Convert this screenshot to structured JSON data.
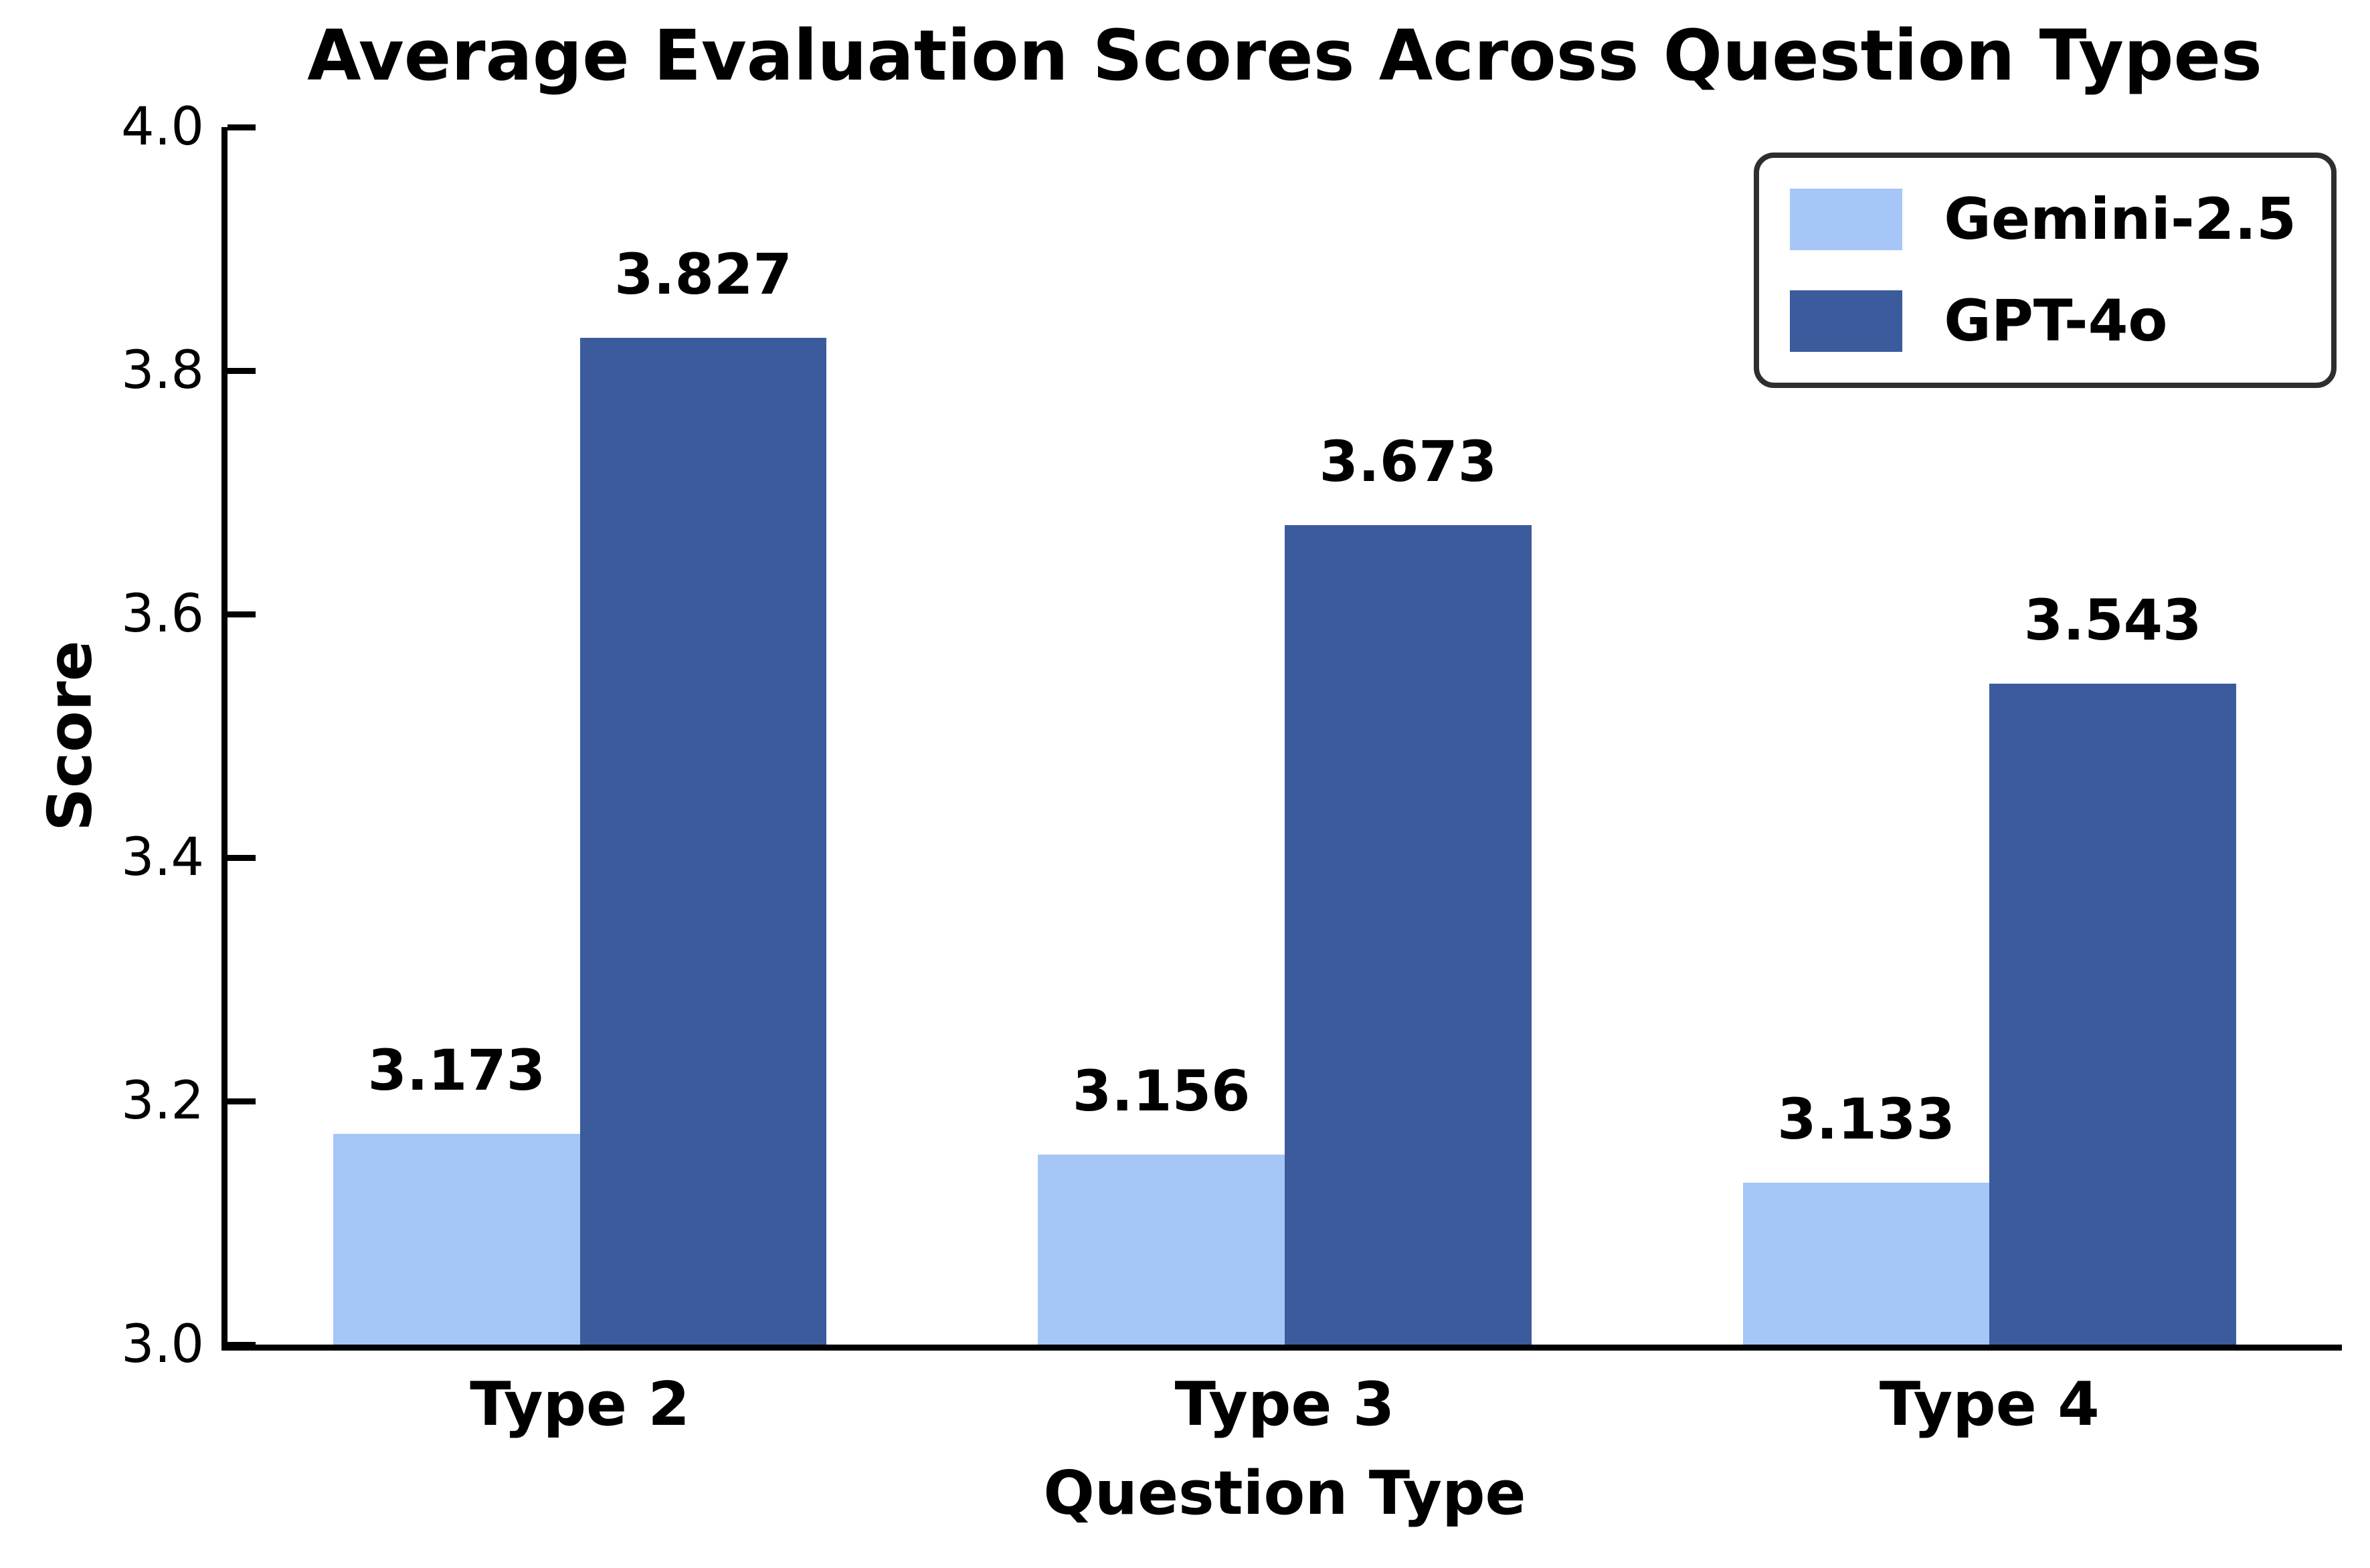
{
  "chart_data": {
    "type": "bar",
    "title": "Average Evaluation Scores Across Question Types",
    "xlabel": "Question Type",
    "ylabel": "Score",
    "categories": [
      "Type 2",
      "Type 3",
      "Type 4"
    ],
    "series": [
      {
        "name": "Gemini-2.5",
        "color": "#A6C6F8",
        "values": [
          3.173,
          3.156,
          3.133
        ],
        "labels": [
          "3.173",
          "3.156",
          "3.133"
        ]
      },
      {
        "name": "GPT-4o",
        "color": "#3B5B9D",
        "values": [
          3.827,
          3.673,
          3.543
        ],
        "labels": [
          "3.827",
          "3.673",
          "3.543"
        ]
      }
    ],
    "ylim": [
      3.0,
      4.0
    ],
    "yticks": [
      {
        "value": 4.0,
        "label": "4.0"
      },
      {
        "value": 3.8,
        "label": "3.8"
      },
      {
        "value": 3.6,
        "label": "3.6"
      },
      {
        "value": 3.4,
        "label": "3.4"
      },
      {
        "value": 3.2,
        "label": "3.2"
      },
      {
        "value": 3.0,
        "label": "3.0"
      }
    ],
    "grid": false,
    "legend_position": "upper right",
    "bar_width_fraction": 0.35,
    "colors": {
      "axis": "#000000",
      "text": "#000000",
      "legend_border": "#2E2E2E",
      "background": "#FFFFFF"
    }
  }
}
